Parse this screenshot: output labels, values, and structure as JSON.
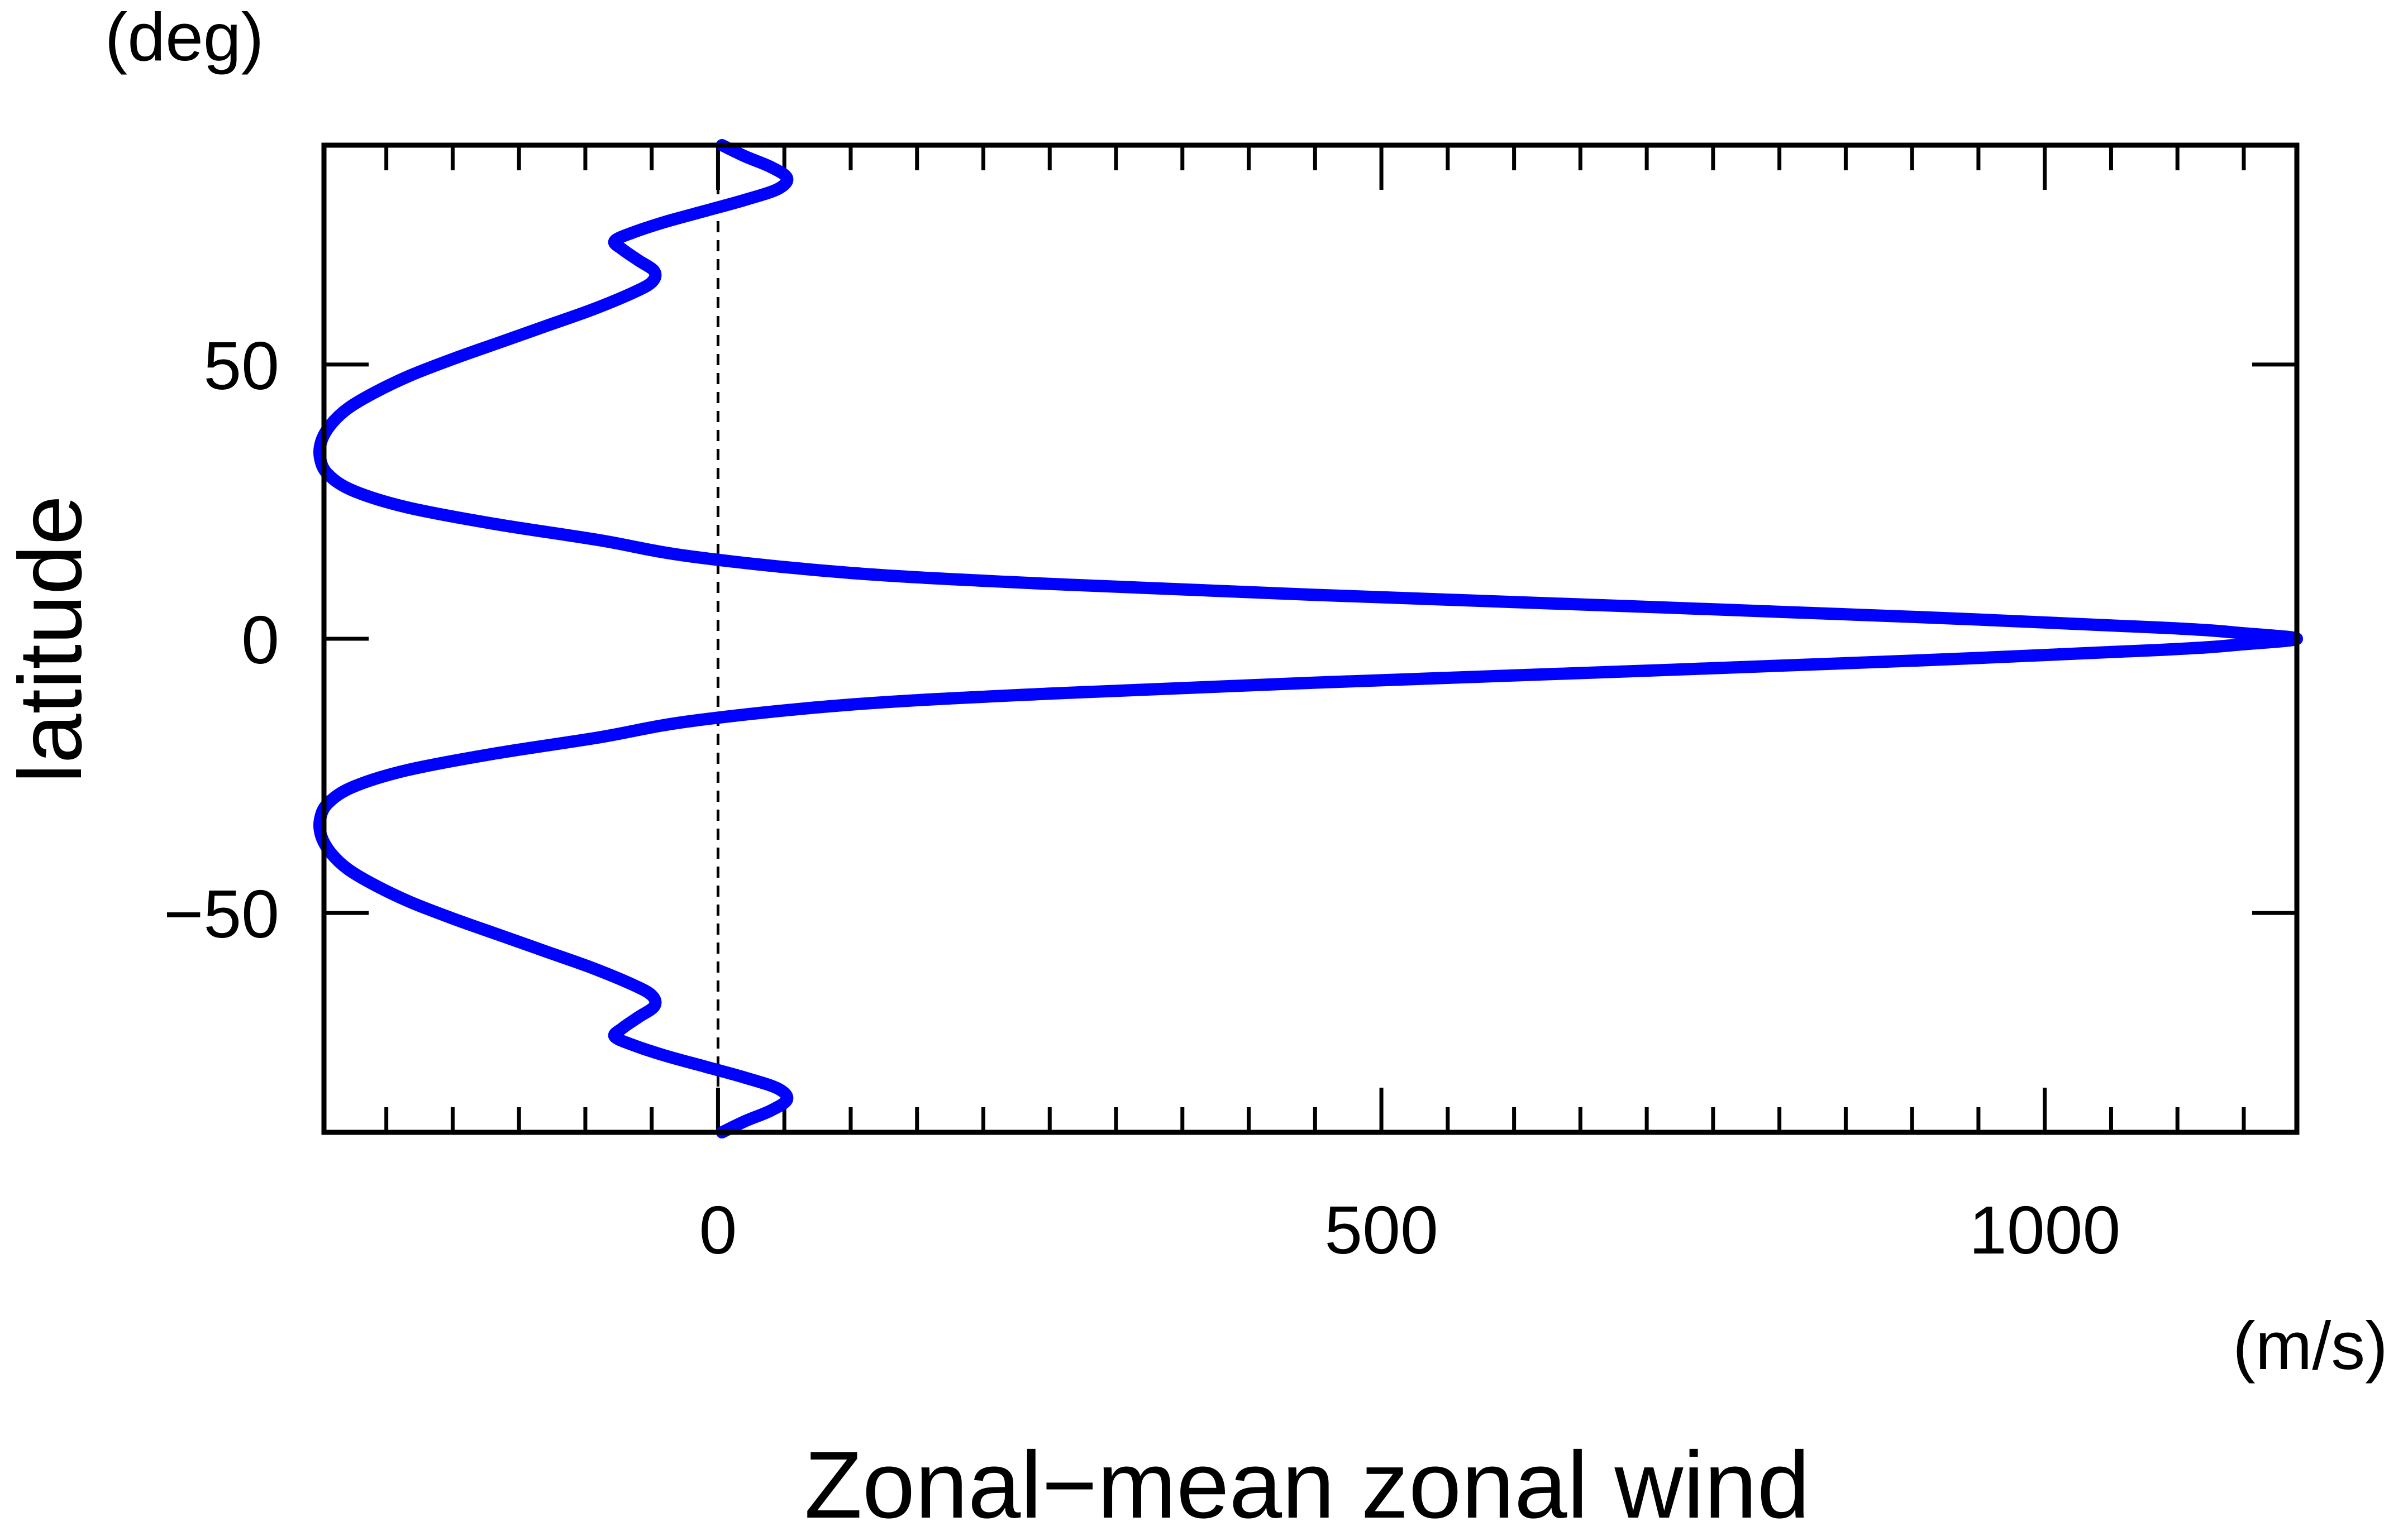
{
  "chart_data": {
    "type": "line",
    "title": "",
    "xlabel": "Zonal−mean zonal wind",
    "ylabel": "latitude",
    "x_unit": "(m/s)",
    "y_unit": "(deg)",
    "xlim": [
      -297,
      1190
    ],
    "ylim": [
      -90,
      90
    ],
    "x_ticks": [
      0,
      500,
      1000
    ],
    "x_tick_labels": [
      "0",
      "500",
      "1000"
    ],
    "x_minor_step": 50,
    "y_ticks": [
      -50,
      0,
      50
    ],
    "y_tick_labels": [
      "−50",
      "0",
      "50"
    ],
    "zero_line": {
      "x": 0,
      "style": "dashed"
    },
    "grid": false,
    "series": [
      {
        "name": "",
        "color": "#0000ff",
        "points": [
          {
            "lat": -90,
            "u": 3
          },
          {
            "lat": -88,
            "u": 20
          },
          {
            "lat": -86,
            "u": 40
          },
          {
            "lat": -84,
            "u": 52
          },
          {
            "lat": -82,
            "u": 45
          },
          {
            "lat": -80,
            "u": 20
          },
          {
            "lat": -78,
            "u": -10
          },
          {
            "lat": -76,
            "u": -40
          },
          {
            "lat": -74,
            "u": -65
          },
          {
            "lat": -72.5,
            "u": -78
          },
          {
            "lat": -71,
            "u": -72
          },
          {
            "lat": -69,
            "u": -60
          },
          {
            "lat": -67,
            "u": -48
          },
          {
            "lat": -65,
            "u": -50
          },
          {
            "lat": -63,
            "u": -65
          },
          {
            "lat": -60,
            "u": -95
          },
          {
            "lat": -57,
            "u": -130
          },
          {
            "lat": -54,
            "u": -165
          },
          {
            "lat": -51,
            "u": -200
          },
          {
            "lat": -48,
            "u": -232
          },
          {
            "lat": -45,
            "u": -258
          },
          {
            "lat": -42,
            "u": -279
          },
          {
            "lat": -39,
            "u": -292
          },
          {
            "lat": -36,
            "u": -299
          },
          {
            "lat": -33,
            "u": -300
          },
          {
            "lat": -30,
            "u": -294
          },
          {
            "lat": -27,
            "u": -275
          },
          {
            "lat": -24,
            "u": -235
          },
          {
            "lat": -21,
            "u": -170
          },
          {
            "lat": -18,
            "u": -90
          },
          {
            "lat": -15,
            "u": -20
          },
          {
            "lat": -12,
            "u": 100
          },
          {
            "lat": -10,
            "u": 250
          },
          {
            "lat": -8,
            "u": 450
          },
          {
            "lat": -6,
            "u": 680
          },
          {
            "lat": -4,
            "u": 900
          },
          {
            "lat": -2,
            "u": 1090
          },
          {
            "lat": -1,
            "u": 1150
          },
          {
            "lat": 0,
            "u": 1190
          },
          {
            "lat": 1,
            "u": 1150
          },
          {
            "lat": 2,
            "u": 1090
          },
          {
            "lat": 4,
            "u": 900
          },
          {
            "lat": 6,
            "u": 680
          },
          {
            "lat": 8,
            "u": 450
          },
          {
            "lat": 10,
            "u": 250
          },
          {
            "lat": 12,
            "u": 100
          },
          {
            "lat": 15,
            "u": -20
          },
          {
            "lat": 18,
            "u": -90
          },
          {
            "lat": 21,
            "u": -170
          },
          {
            "lat": 24,
            "u": -235
          },
          {
            "lat": 27,
            "u": -275
          },
          {
            "lat": 30,
            "u": -294
          },
          {
            "lat": 33,
            "u": -300
          },
          {
            "lat": 36,
            "u": -299
          },
          {
            "lat": 39,
            "u": -292
          },
          {
            "lat": 42,
            "u": -279
          },
          {
            "lat": 45,
            "u": -258
          },
          {
            "lat": 48,
            "u": -232
          },
          {
            "lat": 51,
            "u": -200
          },
          {
            "lat": 54,
            "u": -165
          },
          {
            "lat": 57,
            "u": -130
          },
          {
            "lat": 60,
            "u": -95
          },
          {
            "lat": 63,
            "u": -65
          },
          {
            "lat": 65,
            "u": -50
          },
          {
            "lat": 67,
            "u": -48
          },
          {
            "lat": 69,
            "u": -60
          },
          {
            "lat": 71,
            "u": -72
          },
          {
            "lat": 72.5,
            "u": -78
          },
          {
            "lat": 74,
            "u": -65
          },
          {
            "lat": 76,
            "u": -40
          },
          {
            "lat": 78,
            "u": -10
          },
          {
            "lat": 80,
            "u": 20
          },
          {
            "lat": 82,
            "u": 45
          },
          {
            "lat": 84,
            "u": 52
          },
          {
            "lat": 86,
            "u": 40
          },
          {
            "lat": 88,
            "u": 20
          },
          {
            "lat": 90,
            "u": 3
          }
        ]
      }
    ]
  }
}
